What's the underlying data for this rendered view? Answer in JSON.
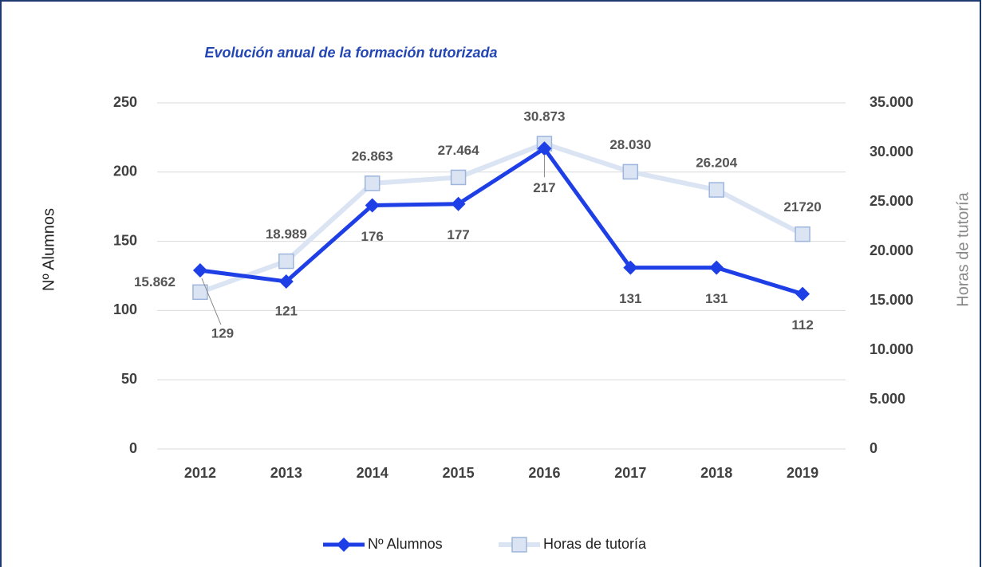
{
  "chart_data": {
    "type": "line",
    "title": "Evolución anual de la formación tutorizada",
    "categories": [
      "2012",
      "2013",
      "2014",
      "2015",
      "2016",
      "2017",
      "2018",
      "2019"
    ],
    "ylabel": "Nº Alumnos",
    "y2label": "Horas de tutoría",
    "ylim": [
      0,
      250
    ],
    "yticks": [
      0,
      50,
      100,
      150,
      200,
      250
    ],
    "y2lim": [
      0,
      35000
    ],
    "y2ticks": [
      0,
      {
        "value": 5000,
        "label": "5.000"
      },
      {
        "value": 10000,
        "label": "10.000"
      },
      {
        "value": 15000,
        "label": "15.000"
      },
      {
        "value": 20000,
        "label": "20.000"
      },
      {
        "value": 25000,
        "label": "25.000"
      },
      {
        "value": 30000,
        "label": "30.000"
      },
      {
        "value": 35000,
        "label": "35.000"
      }
    ],
    "grid": true,
    "legend": "bottom",
    "series": [
      {
        "name": "Nº Alumnos",
        "color": "#1f3fe6",
        "values": [
          129,
          121,
          176,
          177,
          217,
          131,
          131,
          112
        ]
      },
      {
        "name": "Horas de tutoría",
        "color": "#dbe4f3",
        "axis": "y2",
        "values": [
          15862,
          18989,
          26863,
          27464,
          30873,
          28030,
          26204,
          21720
        ],
        "value_labels": [
          "15.862",
          "18.989",
          "26.863",
          "27.464",
          "30.873",
          "28.030",
          "26.204",
          "21720"
        ]
      }
    ]
  }
}
